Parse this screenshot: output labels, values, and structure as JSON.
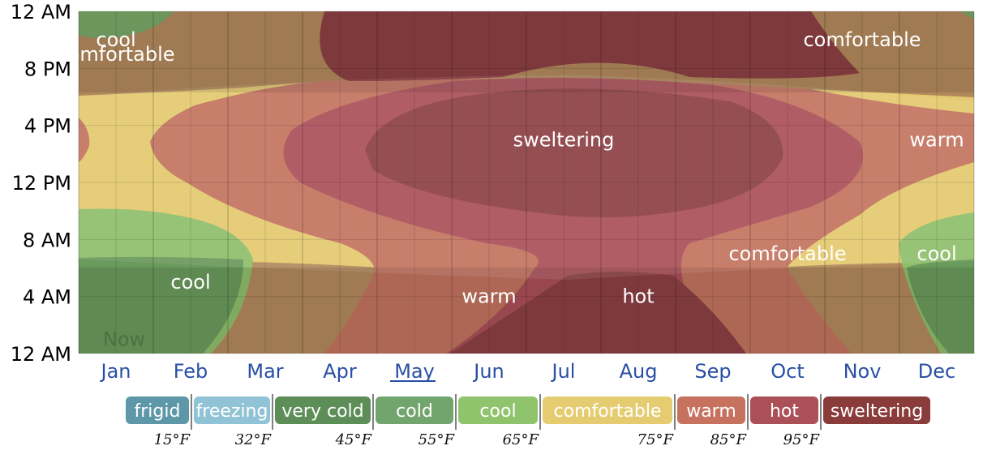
{
  "chart_data": {
    "type": "heatmap",
    "title": "",
    "xlabel": "",
    "ylabel": "",
    "categories": [
      "Jan",
      "Feb",
      "Mar",
      "Apr",
      "May",
      "Jun",
      "Jul",
      "Aug",
      "Sep",
      "Oct",
      "Nov",
      "Dec"
    ],
    "y_ticks": [
      "12 AM",
      "8 PM",
      "4 PM",
      "12 PM",
      "8 AM",
      "4 AM",
      "12 AM"
    ],
    "current_month": "May",
    "legend_placement": "bottom",
    "legend": [
      {
        "name": "frigid",
        "color": "#5e97a7"
      },
      {
        "name": "freezing",
        "color": "#8fc3d5"
      },
      {
        "name": "very cold",
        "color": "#5d8e58"
      },
      {
        "name": "cold",
        "color": "#72a56d"
      },
      {
        "name": "cool",
        "color": "#8fc46c"
      },
      {
        "name": "comfortable",
        "color": "#e6cc71"
      },
      {
        "name": "warm",
        "color": "#c7725f"
      },
      {
        "name": "hot",
        "color": "#ac5058"
      },
      {
        "name": "sweltering",
        "color": "#8a3c3a"
      }
    ],
    "thresholds": [
      "15°F",
      "32°F",
      "45°F",
      "55°F",
      "65°F",
      "75°F",
      "85°F",
      "95°F"
    ],
    "annotations": [
      {
        "text": "cool",
        "month": "Jan",
        "time": "10 PM"
      },
      {
        "text": "comfortable",
        "month": "Jan",
        "time": "9 PM"
      },
      {
        "text": "comfortable",
        "month": "Nov",
        "time": "10 PM"
      },
      {
        "text": "sweltering",
        "month": "Jul",
        "time": "3 PM"
      },
      {
        "text": "warm",
        "month": "Dec",
        "time": "3 PM"
      },
      {
        "text": "comfortable",
        "month": "Oct",
        "time": "7 AM"
      },
      {
        "text": "cool",
        "month": "Dec",
        "time": "7 AM"
      },
      {
        "text": "cool",
        "month": "Feb",
        "time": "5 AM"
      },
      {
        "text": "warm",
        "month": "Jun",
        "time": "4 AM"
      },
      {
        "text": "hot",
        "month": "Aug",
        "time": "4 AM"
      },
      {
        "text": "Now",
        "month": "Jan",
        "time": "1 AM"
      }
    ]
  }
}
